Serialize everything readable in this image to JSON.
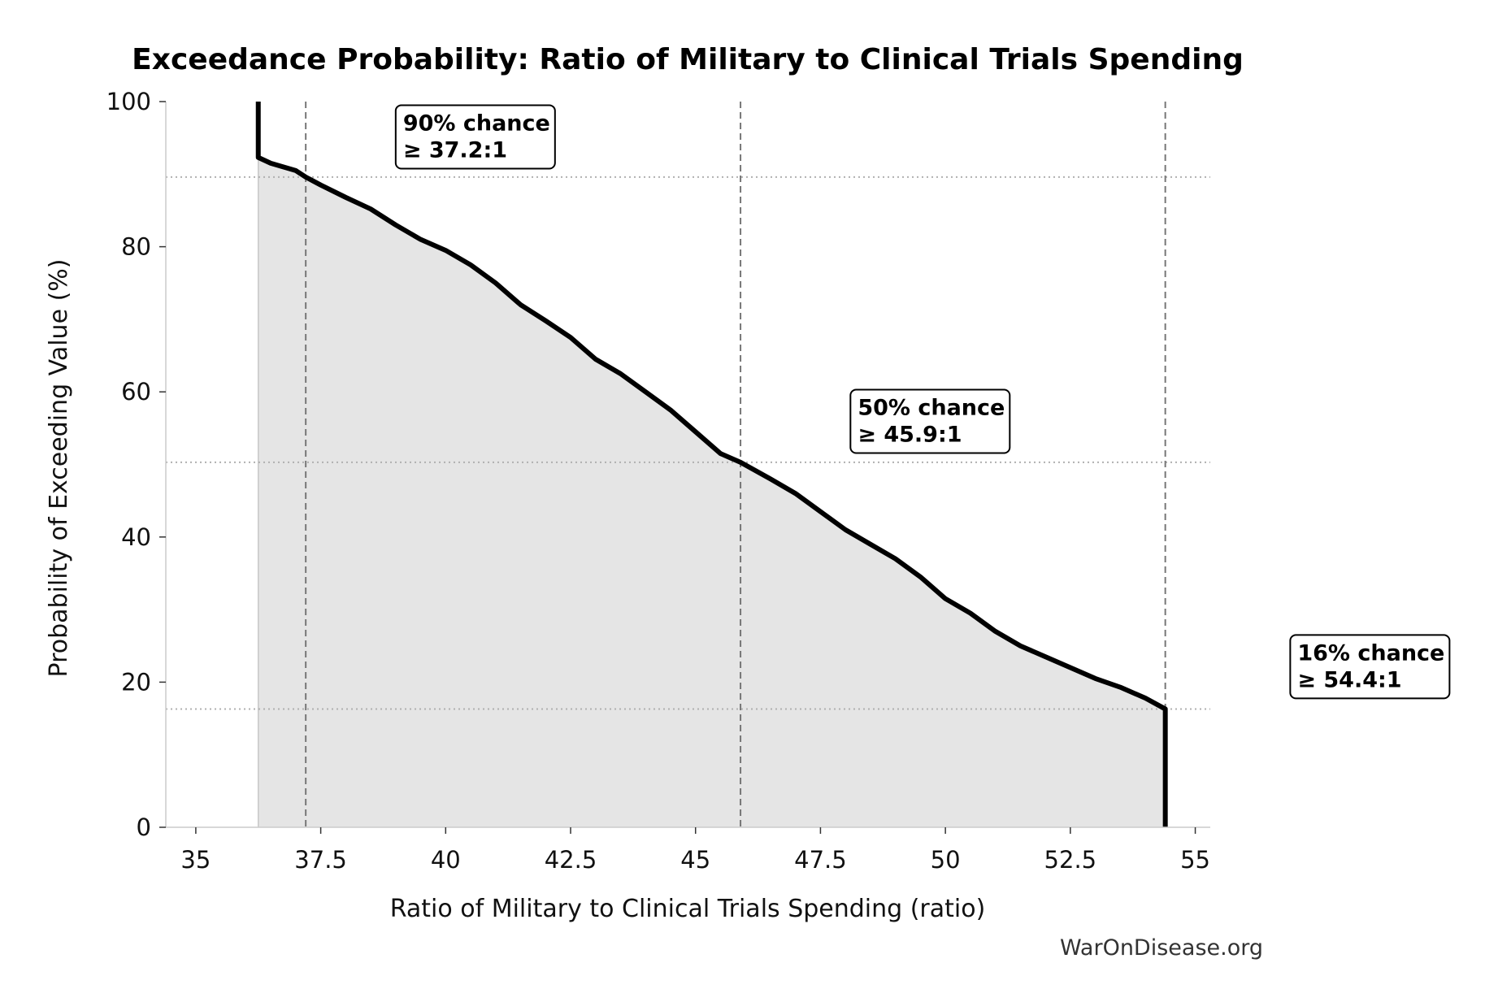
{
  "chart_data": {
    "type": "line",
    "title": "Exceedance Probability: Ratio of Military to Clinical Trials Spending",
    "xlabel": "Ratio of Military to Clinical Trials Spending (ratio)",
    "ylabel": "Probability of Exceeding Value (%)",
    "xlim": [
      34.4,
      55.3
    ],
    "ylim": [
      0,
      100
    ],
    "xticks": [
      35,
      37.5,
      40,
      42.5,
      45,
      47.5,
      50,
      52.5,
      55
    ],
    "xtick_labels": [
      "35",
      "37.5",
      "40",
      "42.5",
      "45",
      "47.5",
      "50",
      "52.5",
      "55"
    ],
    "yticks": [
      0,
      20,
      40,
      60,
      80,
      100
    ],
    "ytick_labels": [
      "0",
      "20",
      "40",
      "60",
      "80",
      "100"
    ],
    "grid": false,
    "series": [
      {
        "x": [
          36.25,
          36.25,
          36.5,
          37.0,
          37.2,
          37.5,
          38.0,
          38.5,
          39.0,
          39.5,
          40.0,
          40.5,
          41.0,
          41.5,
          42.0,
          42.5,
          43.0,
          43.5,
          44.0,
          44.5,
          45.0,
          45.5,
          45.9,
          46.5,
          47.0,
          47.5,
          48.0,
          48.5,
          49.0,
          49.5,
          50.0,
          50.5,
          51.0,
          51.5,
          52.0,
          52.5,
          53.0,
          53.5,
          54.0,
          54.4,
          54.4
        ],
        "y": [
          100,
          92.3,
          91.5,
          90.5,
          89.6,
          88.5,
          86.8,
          85.2,
          83.0,
          81.0,
          79.5,
          77.5,
          75.0,
          72.0,
          69.8,
          67.5,
          64.5,
          62.5,
          60.0,
          57.5,
          54.5,
          51.5,
          50.3,
          48.0,
          46.0,
          43.5,
          41.0,
          39.0,
          37.0,
          34.5,
          31.5,
          29.5,
          27.0,
          25.0,
          23.5,
          22.0,
          20.5,
          19.3,
          17.8,
          16.3,
          0
        ]
      }
    ],
    "reference_lines": [
      {
        "x": 37.2,
        "y": 89.6
      },
      {
        "x": 45.9,
        "y": 50.3
      },
      {
        "x": 54.4,
        "y": 16.3
      }
    ],
    "annotations": [
      {
        "line1": "90% chance",
        "line2": "≥ 37.2:1",
        "x": 39.0,
        "y": 99.5
      },
      {
        "line1": "50% chance",
        "line2": "≥ 45.9:1",
        "x": 48.1,
        "y": 60.3
      },
      {
        "line1": "16% chance",
        "line2": "≥ 54.4:1",
        "x": 56.9,
        "y": 26.5
      }
    ],
    "colors": {
      "line": "#000000",
      "fill": "#e5e5e5",
      "reference": "#777777",
      "hgrid": "#b0b0b0"
    }
  },
  "watermark": "WarOnDisease.org"
}
